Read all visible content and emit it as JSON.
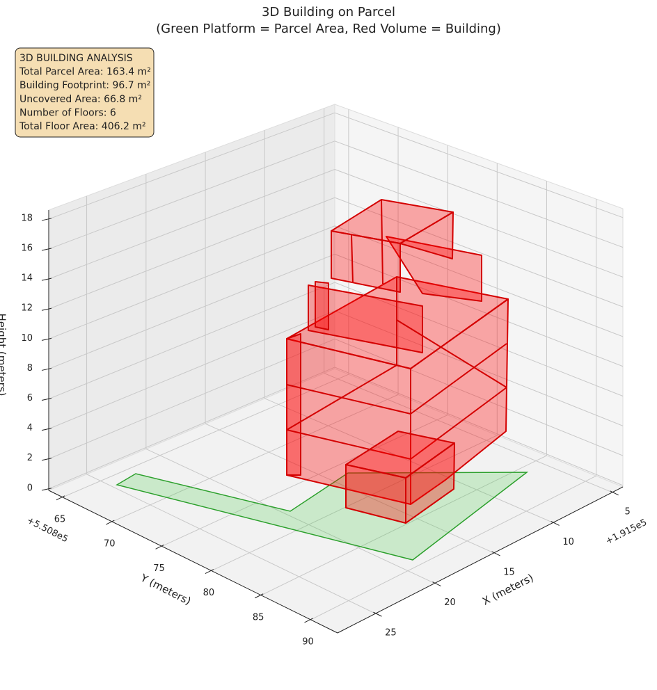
{
  "chart_data": {
    "type": "building3d",
    "title": "3D Building on Parcel",
    "subtitle": "(Green Platform = Parcel Area, Red Volume = Building)",
    "info_box": [
      "3D BUILDING ANALYSIS",
      "Total Parcel Area: 163.4 m²",
      "Building Footprint: 96.7 m²",
      "Uncovered Area: 66.8 m²",
      "Number of Floors: 6",
      "Total Floor Area: 406.2 m²"
    ],
    "xlabel": "X (meters)",
    "ylabel": "Y (meters)",
    "zlabel": "Height (meters)",
    "x_offset": "+1.915e5",
    "y_offset": "+5.508e5",
    "xlim": [
      4.1,
      28.2
    ],
    "ylim": [
      63.6,
      92.7
    ],
    "zlim": [
      -0.1,
      18.6
    ],
    "xticks": [
      5,
      10,
      15,
      20,
      25
    ],
    "yticks": [
      65,
      70,
      75,
      80,
      85,
      90
    ],
    "zticks": [
      0,
      2,
      4,
      6,
      8,
      10,
      12,
      14,
      16,
      18
    ],
    "grid": true
  }
}
